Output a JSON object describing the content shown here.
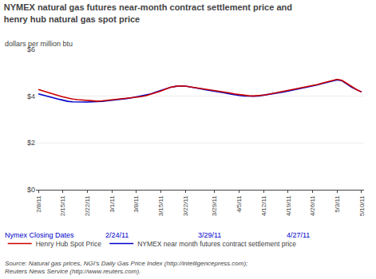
{
  "chart_data": {
    "type": "line",
    "title": "NYMEX natural gas futures near-month contract settlement price and\nhenry hub natural gas spot price",
    "ylabel": "dollars per million btu",
    "source": "Source: Natural gas prices, NGI's Daily Gas Price Index (http://intelligencepress.com);\nReuters News Service (http://www.reuters.com).",
    "categories": [
      "2/8/11",
      null,
      null,
      null,
      null,
      "2/15/11",
      null,
      null,
      null,
      null,
      "2/22/11",
      null,
      null,
      null,
      null,
      "3/1/11",
      null,
      null,
      null,
      null,
      "3/8/11",
      null,
      null,
      null,
      null,
      "3/15/11",
      null,
      null,
      null,
      null,
      "3/22/11",
      null,
      null,
      null,
      null,
      null,
      "3/29/11",
      null,
      null,
      null,
      null,
      "4/5/11",
      null,
      null,
      null,
      null,
      "4/12/11",
      null,
      null,
      null,
      null,
      "4/19/11",
      null,
      null,
      null,
      null,
      "4/26/11",
      null,
      null,
      null,
      null,
      "5/3/11",
      null,
      null,
      null,
      null,
      "5/10/11"
    ],
    "series": [
      {
        "name": "NYMEX near month futures contract settlement price",
        "color": "#0000cc",
        "values": [
          4.1,
          4.04,
          3.98,
          3.93,
          3.88,
          3.83,
          3.78,
          3.76,
          3.75,
          3.74,
          3.75,
          3.76,
          3.76,
          3.78,
          3.8,
          3.82,
          3.85,
          3.87,
          3.9,
          3.93,
          3.97,
          4.0,
          4.04,
          4.1,
          4.18,
          4.25,
          4.32,
          4.38,
          4.42,
          4.44,
          4.43,
          4.4,
          4.36,
          4.32,
          4.28,
          4.25,
          4.22,
          4.18,
          4.14,
          4.1,
          4.06,
          4.03,
          4.01,
          4.0,
          4.0,
          4.01,
          4.04,
          4.07,
          4.1,
          4.14,
          4.18,
          4.22,
          4.26,
          4.3,
          4.34,
          4.38,
          4.43,
          4.48,
          4.54,
          4.6,
          4.66,
          4.7,
          4.66,
          4.53,
          4.38,
          4.28,
          4.18
        ]
      },
      {
        "name": "Henry Hub Spot Price",
        "color": "#cc0000",
        "values": [
          4.29,
          4.22,
          4.15,
          4.08,
          4.03,
          3.97,
          3.92,
          3.88,
          3.85,
          3.83,
          3.82,
          3.8,
          3.79,
          3.8,
          3.82,
          3.84,
          3.86,
          3.88,
          3.9,
          3.92,
          3.95,
          3.98,
          4.02,
          4.08,
          4.15,
          4.22,
          4.3,
          4.38,
          4.42,
          4.44,
          4.43,
          4.4,
          4.36,
          4.32,
          4.3,
          4.28,
          4.25,
          4.22,
          4.18,
          4.14,
          4.1,
          4.07,
          4.04,
          4.02,
          4.01,
          4.02,
          4.05,
          4.08,
          4.12,
          4.16,
          4.2,
          4.24,
          4.28,
          4.32,
          4.36,
          4.4,
          4.45,
          4.5,
          4.56,
          4.62,
          4.68,
          4.72,
          4.68,
          4.55,
          4.4,
          4.28,
          4.18
        ]
      }
    ],
    "ylim": [
      0,
      6
    ],
    "yticks": [
      {
        "value": 0,
        "label": "$0"
      },
      {
        "value": 2,
        "label": "$2"
      },
      {
        "value": 4,
        "label": "$4"
      },
      {
        "value": 6,
        "label": "$6"
      }
    ],
    "grid": true,
    "legend": "bottom",
    "closing_dates_label": {
      "text": "Nymex Closing Dates",
      "color": "#0000cc"
    },
    "closing_dates": [
      {
        "x": 16,
        "text": "2/24/11",
        "color": "#0000cc"
      },
      {
        "x": 35,
        "text": "3/29/11",
        "color": "#0000cc"
      },
      {
        "x": 53,
        "text": "4/27/11",
        "color": "#0000cc"
      }
    ]
  }
}
